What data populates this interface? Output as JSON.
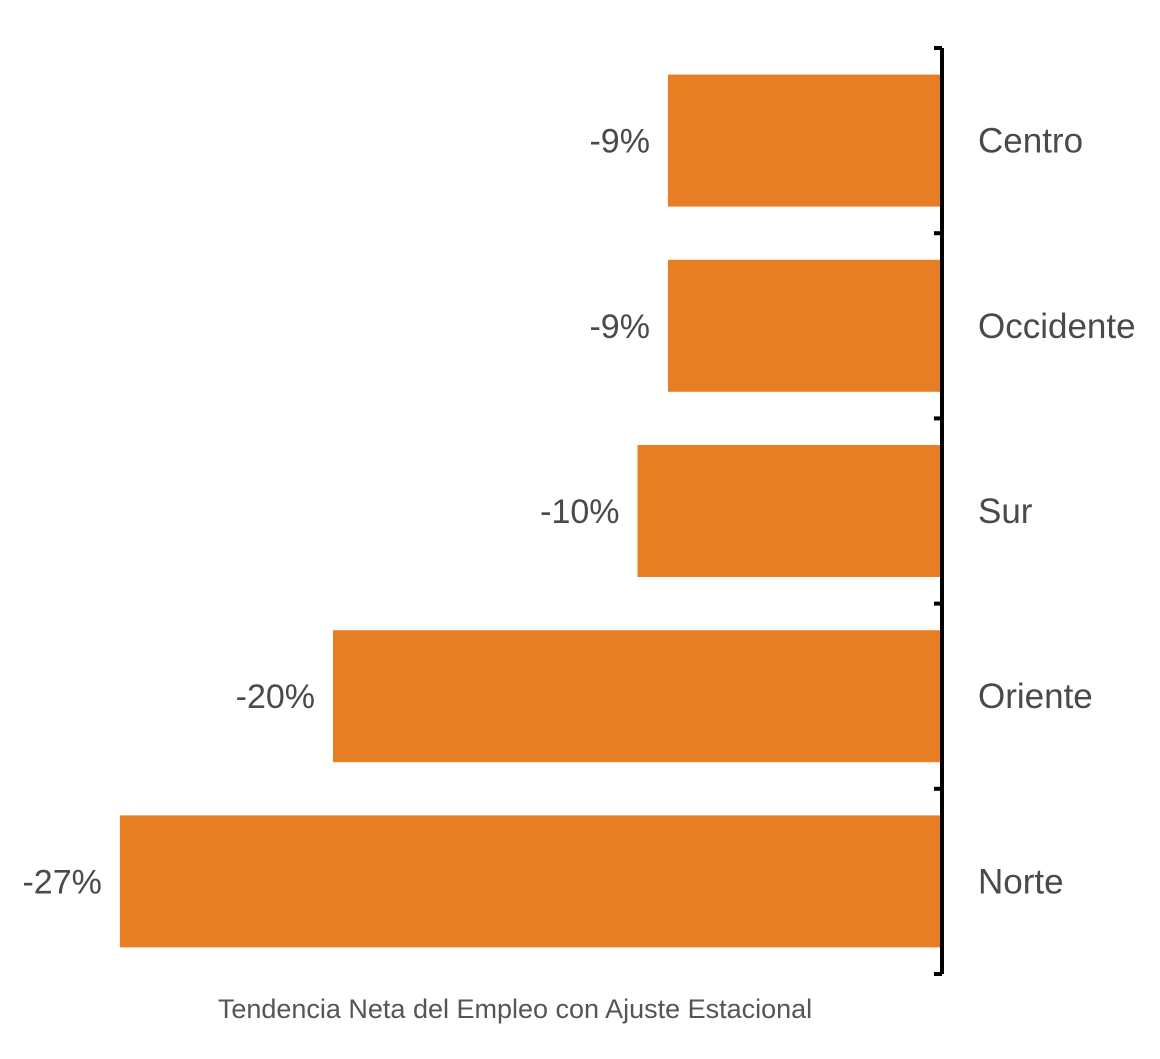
{
  "chart_data": {
    "type": "bar",
    "orientation": "horizontal",
    "categories": [
      "Centro",
      "Occidente",
      "Sur",
      "Oriente",
      "Norte"
    ],
    "values": [
      -9,
      -9,
      -10,
      -20,
      -27
    ],
    "value_labels": [
      "-9%",
      "-9%",
      "-10%",
      "-20%",
      "-27%"
    ],
    "xlabel": "Tendencia Neta del Empleo con Ajuste Estacional",
    "xlim": [
      -30,
      0
    ],
    "grid": false,
    "legend": "none",
    "bar_color": "#E77E23",
    "axis_color": "#000000"
  }
}
